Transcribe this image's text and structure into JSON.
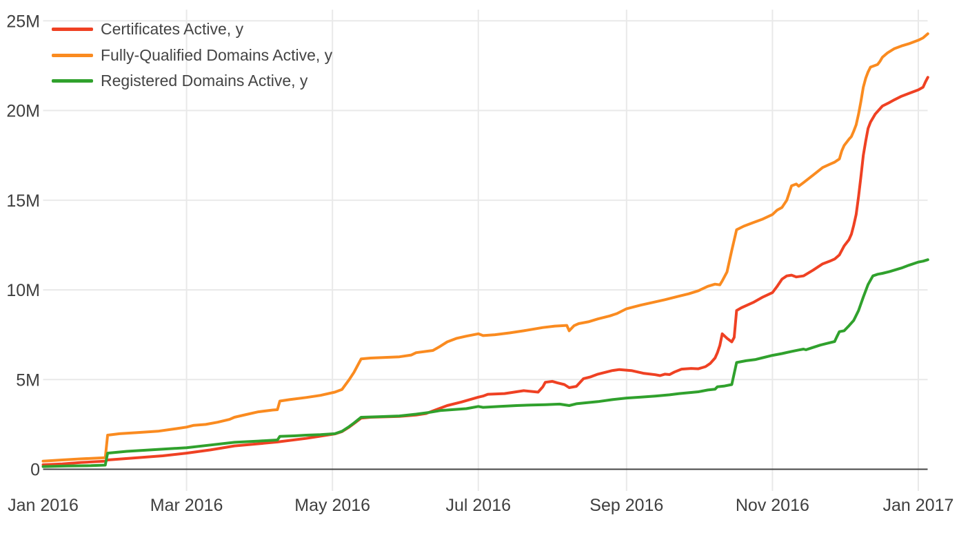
{
  "chart_data": {
    "type": "line",
    "title": "",
    "xlabel": "",
    "ylabel": "",
    "grid": true,
    "legend_position": "top-left",
    "x_axis": {
      "unit": "days since 2016-01-01",
      "range_days": [
        0,
        370
      ],
      "ticks": [
        {
          "label": "Jan 2016",
          "day": 0
        },
        {
          "label": "Mar 2016",
          "day": 60
        },
        {
          "label": "May 2016",
          "day": 121
        },
        {
          "label": "Jul 2016",
          "day": 182
        },
        {
          "label": "Sep 2016",
          "day": 244
        },
        {
          "label": "Nov 2016",
          "day": 305
        },
        {
          "label": "Jan 2017",
          "day": 366
        }
      ]
    },
    "y_axis": {
      "unit": "millions",
      "range_millions": [
        -1.2,
        25.6
      ],
      "ticks": [
        {
          "label": "0",
          "value": 0
        },
        {
          "label": "5M",
          "value": 5
        },
        {
          "label": "10M",
          "value": 10
        },
        {
          "label": "15M",
          "value": 15
        },
        {
          "label": "20M",
          "value": 20
        },
        {
          "label": "25M",
          "value": 25
        }
      ]
    },
    "series": [
      {
        "name": "Certificates Active, y",
        "color": "#ef4123",
        "points": [
          [
            0,
            0.25
          ],
          [
            8,
            0.3
          ],
          [
            16,
            0.38
          ],
          [
            26,
            0.45
          ],
          [
            27,
            0.52
          ],
          [
            40,
            0.65
          ],
          [
            50,
            0.75
          ],
          [
            60,
            0.9
          ],
          [
            70,
            1.08
          ],
          [
            80,
            1.3
          ],
          [
            90,
            1.42
          ],
          [
            98,
            1.52
          ],
          [
            110,
            1.72
          ],
          [
            122,
            1.97
          ],
          [
            125,
            2.1
          ],
          [
            128,
            2.35
          ],
          [
            130,
            2.55
          ],
          [
            133,
            2.85
          ],
          [
            137,
            2.9
          ],
          [
            149,
            2.95
          ],
          [
            156,
            3.02
          ],
          [
            160,
            3.1
          ],
          [
            164,
            3.3
          ],
          [
            169,
            3.55
          ],
          [
            175,
            3.75
          ],
          [
            182,
            4.02
          ],
          [
            184,
            4.08
          ],
          [
            186,
            4.18
          ],
          [
            193,
            4.22
          ],
          [
            201,
            4.38
          ],
          [
            207,
            4.3
          ],
          [
            209,
            4.6
          ],
          [
            210,
            4.85
          ],
          [
            213,
            4.9
          ],
          [
            215,
            4.82
          ],
          [
            218,
            4.72
          ],
          [
            220,
            4.55
          ],
          [
            223,
            4.62
          ],
          [
            226,
            5.05
          ],
          [
            229,
            5.15
          ],
          [
            232,
            5.3
          ],
          [
            238,
            5.5
          ],
          [
            241,
            5.56
          ],
          [
            246,
            5.5
          ],
          [
            251,
            5.35
          ],
          [
            256,
            5.27
          ],
          [
            258,
            5.22
          ],
          [
            260,
            5.3
          ],
          [
            262,
            5.28
          ],
          [
            264,
            5.42
          ],
          [
            267,
            5.58
          ],
          [
            271,
            5.62
          ],
          [
            274,
            5.6
          ],
          [
            277,
            5.72
          ],
          [
            279,
            5.9
          ],
          [
            281,
            6.2
          ],
          [
            282,
            6.5
          ],
          [
            283,
            6.9
          ],
          [
            284,
            7.55
          ],
          [
            286,
            7.3
          ],
          [
            288,
            7.1
          ],
          [
            289,
            7.35
          ],
          [
            290,
            8.85
          ],
          [
            292,
            9.0
          ],
          [
            297,
            9.3
          ],
          [
            301,
            9.6
          ],
          [
            305,
            9.85
          ],
          [
            307,
            10.2
          ],
          [
            309,
            10.6
          ],
          [
            311,
            10.78
          ],
          [
            313,
            10.82
          ],
          [
            315,
            10.72
          ],
          [
            318,
            10.78
          ],
          [
            322,
            11.1
          ],
          [
            326,
            11.45
          ],
          [
            329,
            11.6
          ],
          [
            331,
            11.72
          ],
          [
            333,
            11.95
          ],
          [
            335,
            12.45
          ],
          [
            337,
            12.8
          ],
          [
            338,
            13.1
          ],
          [
            339,
            13.6
          ],
          [
            340,
            14.2
          ],
          [
            341,
            15.2
          ],
          [
            342,
            16.3
          ],
          [
            343,
            17.5
          ],
          [
            344,
            18.3
          ],
          [
            345,
            19.0
          ],
          [
            346,
            19.35
          ],
          [
            348,
            19.8
          ],
          [
            351,
            20.25
          ],
          [
            354,
            20.45
          ],
          [
            356,
            20.6
          ],
          [
            359,
            20.8
          ],
          [
            362,
            20.95
          ],
          [
            366,
            21.15
          ],
          [
            368,
            21.3
          ],
          [
            369,
            21.6
          ],
          [
            370,
            21.85
          ]
        ]
      },
      {
        "name": "Fully-Qualified Domains Active, y",
        "color": "#fa8b20",
        "points": [
          [
            0,
            0.45
          ],
          [
            8,
            0.52
          ],
          [
            16,
            0.58
          ],
          [
            26,
            0.64
          ],
          [
            27,
            1.9
          ],
          [
            32,
            1.98
          ],
          [
            40,
            2.05
          ],
          [
            48,
            2.12
          ],
          [
            55,
            2.25
          ],
          [
            60,
            2.35
          ],
          [
            63,
            2.45
          ],
          [
            68,
            2.5
          ],
          [
            73,
            2.62
          ],
          [
            78,
            2.78
          ],
          [
            80,
            2.9
          ],
          [
            85,
            3.05
          ],
          [
            90,
            3.2
          ],
          [
            96,
            3.3
          ],
          [
            98,
            3.32
          ],
          [
            99,
            3.8
          ],
          [
            103,
            3.88
          ],
          [
            110,
            4.0
          ],
          [
            116,
            4.12
          ],
          [
            122,
            4.3
          ],
          [
            125,
            4.45
          ],
          [
            128,
            5.0
          ],
          [
            130,
            5.4
          ],
          [
            132,
            5.9
          ],
          [
            133,
            6.15
          ],
          [
            137,
            6.2
          ],
          [
            149,
            6.27
          ],
          [
            154,
            6.37
          ],
          [
            156,
            6.5
          ],
          [
            163,
            6.62
          ],
          [
            166,
            6.85
          ],
          [
            169,
            7.1
          ],
          [
            173,
            7.3
          ],
          [
            177,
            7.42
          ],
          [
            182,
            7.55
          ],
          [
            184,
            7.45
          ],
          [
            189,
            7.5
          ],
          [
            195,
            7.6
          ],
          [
            201,
            7.72
          ],
          [
            209,
            7.9
          ],
          [
            214,
            7.98
          ],
          [
            219,
            8.02
          ],
          [
            220,
            7.72
          ],
          [
            222,
            8.0
          ],
          [
            224,
            8.12
          ],
          [
            228,
            8.22
          ],
          [
            232,
            8.38
          ],
          [
            237,
            8.55
          ],
          [
            240,
            8.68
          ],
          [
            244,
            8.95
          ],
          [
            250,
            9.15
          ],
          [
            255,
            9.3
          ],
          [
            260,
            9.45
          ],
          [
            266,
            9.65
          ],
          [
            270,
            9.78
          ],
          [
            274,
            9.95
          ],
          [
            278,
            10.2
          ],
          [
            281,
            10.32
          ],
          [
            283,
            10.28
          ],
          [
            284,
            10.5
          ],
          [
            286,
            11.0
          ],
          [
            288,
            12.2
          ],
          [
            290,
            13.35
          ],
          [
            293,
            13.55
          ],
          [
            297,
            13.75
          ],
          [
            301,
            13.95
          ],
          [
            305,
            14.2
          ],
          [
            307,
            14.45
          ],
          [
            309,
            14.6
          ],
          [
            311,
            15.0
          ],
          [
            313,
            15.8
          ],
          [
            315,
            15.9
          ],
          [
            316,
            15.78
          ],
          [
            318,
            15.98
          ],
          [
            322,
            16.4
          ],
          [
            326,
            16.82
          ],
          [
            329,
            17.0
          ],
          [
            331,
            17.12
          ],
          [
            333,
            17.3
          ],
          [
            334,
            17.75
          ],
          [
            335,
            18.05
          ],
          [
            337,
            18.4
          ],
          [
            338,
            18.55
          ],
          [
            339,
            18.85
          ],
          [
            340,
            19.2
          ],
          [
            341,
            19.8
          ],
          [
            342,
            20.5
          ],
          [
            343,
            21.3
          ],
          [
            344,
            21.8
          ],
          [
            345,
            22.15
          ],
          [
            346,
            22.42
          ],
          [
            349,
            22.57
          ],
          [
            350,
            22.75
          ],
          [
            351,
            22.97
          ],
          [
            353,
            23.2
          ],
          [
            356,
            23.45
          ],
          [
            359,
            23.6
          ],
          [
            362,
            23.72
          ],
          [
            366,
            23.92
          ],
          [
            368,
            24.05
          ],
          [
            370,
            24.28
          ]
        ]
      },
      {
        "name": "Registered Domains Active, y",
        "color": "#30a12d",
        "points": [
          [
            0,
            0.15
          ],
          [
            10,
            0.18
          ],
          [
            20,
            0.2
          ],
          [
            26,
            0.23
          ],
          [
            27,
            0.9
          ],
          [
            35,
            1.0
          ],
          [
            45,
            1.08
          ],
          [
            60,
            1.2
          ],
          [
            70,
            1.35
          ],
          [
            80,
            1.5
          ],
          [
            90,
            1.57
          ],
          [
            98,
            1.63
          ],
          [
            99,
            1.83
          ],
          [
            105,
            1.86
          ],
          [
            110,
            1.9
          ],
          [
            116,
            1.93
          ],
          [
            122,
            1.98
          ],
          [
            125,
            2.12
          ],
          [
            128,
            2.38
          ],
          [
            130,
            2.58
          ],
          [
            133,
            2.9
          ],
          [
            140,
            2.93
          ],
          [
            149,
            2.97
          ],
          [
            156,
            3.07
          ],
          [
            162,
            3.18
          ],
          [
            166,
            3.27
          ],
          [
            172,
            3.33
          ],
          [
            177,
            3.38
          ],
          [
            182,
            3.5
          ],
          [
            184,
            3.45
          ],
          [
            191,
            3.5
          ],
          [
            198,
            3.55
          ],
          [
            204,
            3.58
          ],
          [
            210,
            3.6
          ],
          [
            216,
            3.63
          ],
          [
            220,
            3.55
          ],
          [
            223,
            3.65
          ],
          [
            228,
            3.72
          ],
          [
            232,
            3.77
          ],
          [
            238,
            3.88
          ],
          [
            244,
            3.97
          ],
          [
            250,
            4.02
          ],
          [
            256,
            4.08
          ],
          [
            262,
            4.15
          ],
          [
            266,
            4.22
          ],
          [
            271,
            4.28
          ],
          [
            274,
            4.32
          ],
          [
            278,
            4.42
          ],
          [
            281,
            4.46
          ],
          [
            282,
            4.6
          ],
          [
            285,
            4.64
          ],
          [
            288,
            4.72
          ],
          [
            290,
            5.95
          ],
          [
            294,
            6.05
          ],
          [
            298,
            6.12
          ],
          [
            301,
            6.22
          ],
          [
            305,
            6.35
          ],
          [
            309,
            6.45
          ],
          [
            313,
            6.57
          ],
          [
            316,
            6.65
          ],
          [
            318,
            6.7
          ],
          [
            319,
            6.66
          ],
          [
            321,
            6.75
          ],
          [
            325,
            6.92
          ],
          [
            328,
            7.02
          ],
          [
            331,
            7.12
          ],
          [
            332,
            7.4
          ],
          [
            333,
            7.67
          ],
          [
            335,
            7.72
          ],
          [
            337,
            8.0
          ],
          [
            339,
            8.3
          ],
          [
            341,
            8.85
          ],
          [
            343,
            9.6
          ],
          [
            345,
            10.3
          ],
          [
            347,
            10.78
          ],
          [
            349,
            10.87
          ],
          [
            351,
            10.92
          ],
          [
            354,
            11.02
          ],
          [
            356,
            11.1
          ],
          [
            359,
            11.22
          ],
          [
            362,
            11.37
          ],
          [
            366,
            11.55
          ],
          [
            368,
            11.6
          ],
          [
            370,
            11.68
          ]
        ]
      }
    ]
  },
  "colors": {
    "background": "#ffffff",
    "gridline": "#e9e9e9",
    "zero_line": "#444444",
    "tick_text": "#3f3f3f",
    "legend_text": "#444444"
  }
}
